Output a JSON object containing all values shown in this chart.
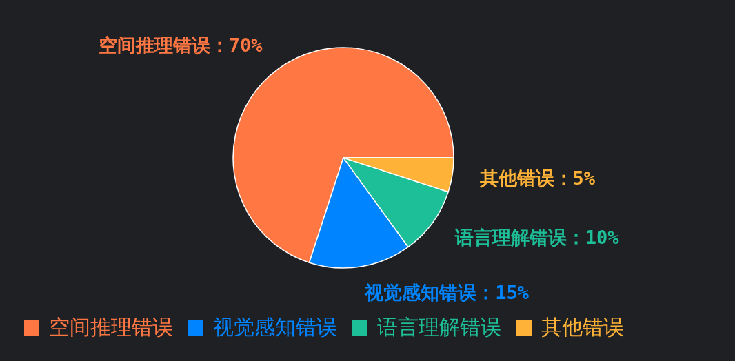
{
  "chart_data": {
    "type": "pie",
    "categories": [
      "空间推理错误",
      "视觉感知错误",
      "语言理解错误",
      "其他错误"
    ],
    "values": [
      70,
      15,
      10,
      5
    ],
    "colors": [
      "#ff7743",
      "#0084ff",
      "#1dbf98",
      "#ffb238"
    ],
    "value_labels": [
      "空间推理错误：70%",
      "视觉感知错误：15%",
      "语言理解错误：10%",
      "其他错误：5%"
    ],
    "legend": "bottom"
  }
}
